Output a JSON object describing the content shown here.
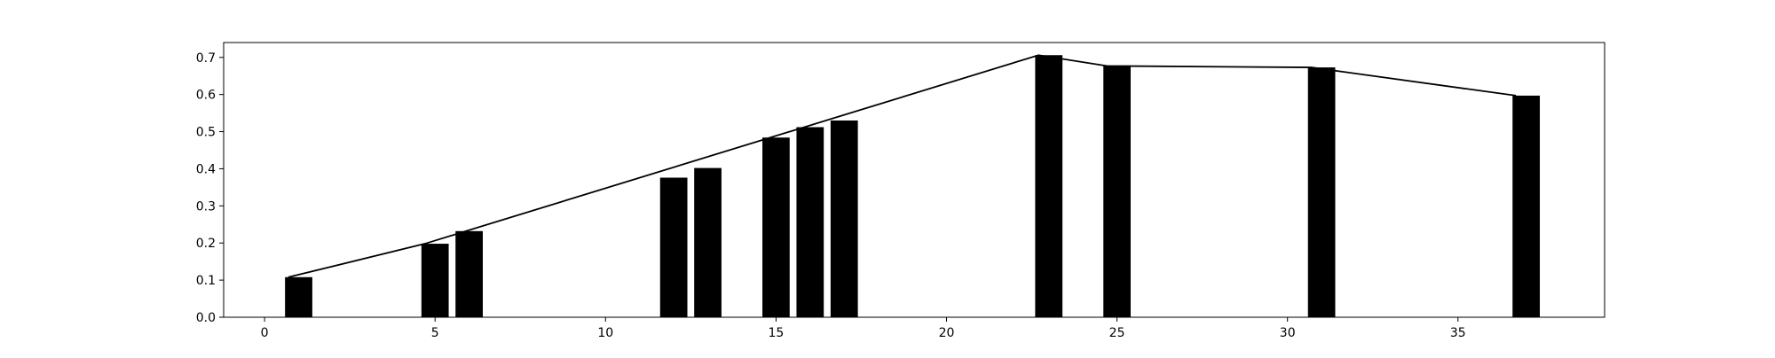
{
  "chart_data": {
    "type": "bar",
    "title": "",
    "xlabel": "",
    "ylabel": "",
    "xlim": [
      -1.2,
      39.3
    ],
    "ylim": [
      0.0,
      0.74
    ],
    "grid": false,
    "xticks": [
      {
        "value": 0,
        "label": "0"
      },
      {
        "value": 5,
        "label": "5"
      },
      {
        "value": 10,
        "label": "10"
      },
      {
        "value": 15,
        "label": "15"
      },
      {
        "value": 20,
        "label": "20"
      },
      {
        "value": 25,
        "label": "25"
      },
      {
        "value": 30,
        "label": "30"
      },
      {
        "value": 35,
        "label": "35"
      }
    ],
    "yticks": [
      {
        "value": 0.0,
        "label": "0.0"
      },
      {
        "value": 0.1,
        "label": "0.1"
      },
      {
        "value": 0.2,
        "label": "0.2"
      },
      {
        "value": 0.3,
        "label": "0.3"
      },
      {
        "value": 0.4,
        "label": "0.4"
      },
      {
        "value": 0.5,
        "label": "0.5"
      },
      {
        "value": 0.6,
        "label": "0.6"
      },
      {
        "value": 0.7,
        "label": "0.7"
      }
    ],
    "bar_width": 0.8,
    "colors": {
      "bar": "#000000",
      "line": "#000000",
      "axis": "#000000"
    },
    "bars": [
      {
        "x": 1,
        "y": 0.108
      },
      {
        "x": 5,
        "y": 0.198
      },
      {
        "x": 6,
        "y": 0.232
      },
      {
        "x": 12,
        "y": 0.376
      },
      {
        "x": 13,
        "y": 0.402
      },
      {
        "x": 15,
        "y": 0.484
      },
      {
        "x": 16,
        "y": 0.512
      },
      {
        "x": 17,
        "y": 0.53
      },
      {
        "x": 23,
        "y": 0.706
      },
      {
        "x": 25,
        "y": 0.677
      },
      {
        "x": 31,
        "y": 0.673
      },
      {
        "x": 37,
        "y": 0.597
      }
    ],
    "line": [
      {
        "x": 0.7,
        "y": 0.108
      },
      {
        "x": 4.7,
        "y": 0.198
      },
      {
        "x": 22.7,
        "y": 0.706
      },
      {
        "x": 24.7,
        "y": 0.677
      },
      {
        "x": 30.7,
        "y": 0.673
      },
      {
        "x": 36.7,
        "y": 0.597
      }
    ]
  }
}
